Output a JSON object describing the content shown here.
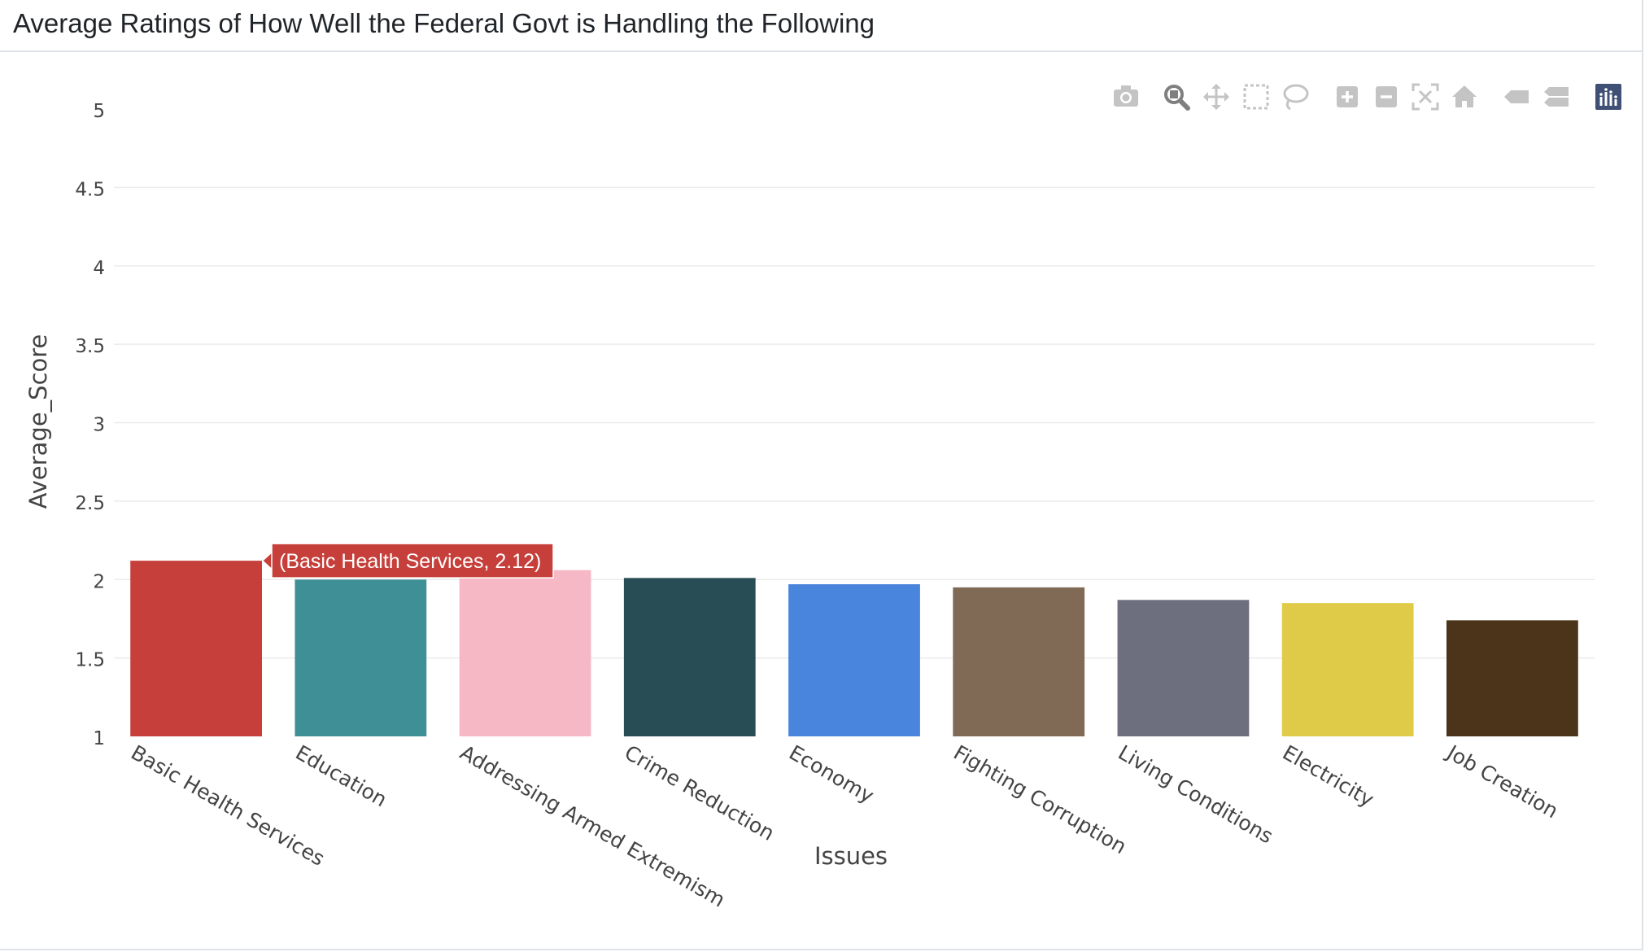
{
  "card": {
    "title": "Average Ratings of How Well the Federal Govt is Handling the Following"
  },
  "modebar": {
    "buttons": [
      {
        "name": "camera-icon",
        "title": "Download plot as a png"
      },
      {
        "name": "zoom-icon",
        "title": "Zoom",
        "active": true
      },
      {
        "name": "pan-icon",
        "title": "Pan"
      },
      {
        "name": "box-select-icon",
        "title": "Box Select"
      },
      {
        "name": "lasso-select-icon",
        "title": "Lasso Select"
      },
      {
        "name": "zoom-in-icon",
        "title": "Zoom in"
      },
      {
        "name": "zoom-out-icon",
        "title": "Zoom out"
      },
      {
        "name": "autoscale-icon",
        "title": "Autoscale"
      },
      {
        "name": "reset-axes-icon",
        "title": "Reset axes"
      },
      {
        "name": "hover-closest-icon",
        "title": "Show closest data on hover"
      },
      {
        "name": "hover-compare-icon",
        "title": "Compare data on hover"
      },
      {
        "name": "plotly-logo-icon",
        "title": "Produced with Plotly"
      }
    ],
    "icon_color": "#c4c4c4",
    "active_color": "#7f7f7f",
    "logo_color": "#3f4f75"
  },
  "chart_data": {
    "type": "bar",
    "title": "",
    "xlabel": "Issues",
    "ylabel": "Average_Score",
    "ylim": [
      1,
      5
    ],
    "yticks": [
      1,
      1.5,
      2,
      2.5,
      3,
      3.5,
      4,
      4.5,
      5
    ],
    "ytick_labels": [
      "1",
      "1.5",
      "2",
      "2.5",
      "3",
      "3.5",
      "4",
      "4.5",
      "5"
    ],
    "grid": true,
    "categories": [
      "Basic Health Services",
      "Education",
      "Addressing Armed Extremism",
      "Crime Reduction",
      "Economy",
      "Fighting Corruption",
      "Living Conditions",
      "Electricity",
      "Job Creation"
    ],
    "values": [
      2.12,
      2.0,
      2.06,
      2.01,
      1.97,
      1.95,
      1.87,
      1.85,
      1.74
    ],
    "colors": [
      "#c63f3a",
      "#3f8f97",
      "#f5b8c4",
      "#284d54",
      "#4a85dd",
      "#806a56",
      "#6d6e7e",
      "#dfcb47",
      "#4c341b"
    ],
    "tooltip": {
      "text": "(Basic Health Services, 2.12)",
      "category_index": 0,
      "color": "#c63f3a"
    }
  }
}
